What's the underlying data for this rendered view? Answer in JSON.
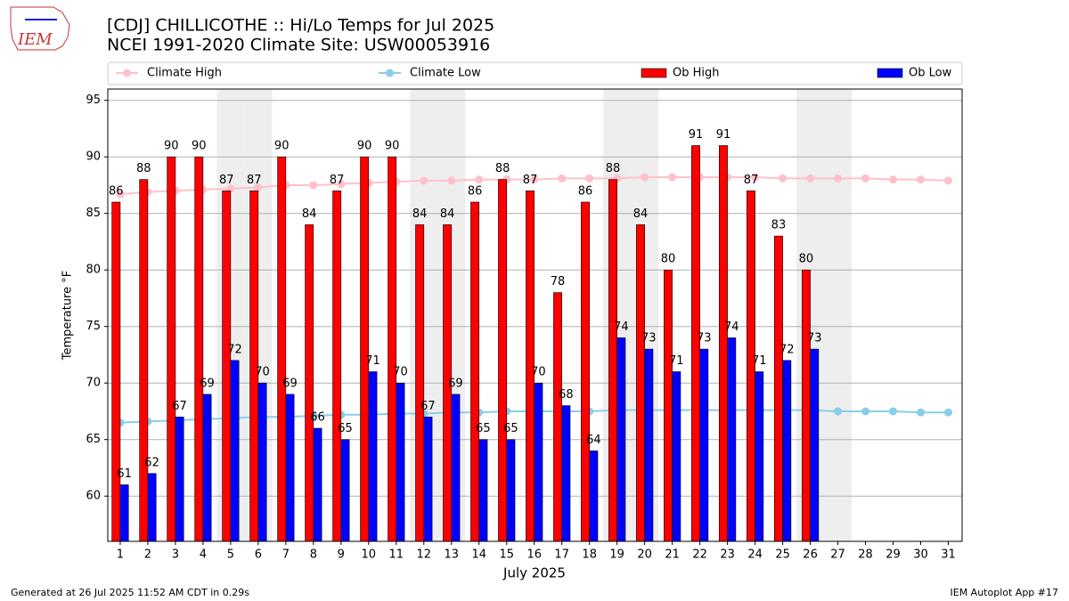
{
  "chart_data": {
    "type": "bar",
    "title": "[CDJ] CHILLICOTHE :: Hi/Lo Temps for Jul 2025",
    "subtitle": "NCEI 1991-2020 Climate Site: USW00053916",
    "logo": "IEM",
    "xlabel": "July 2025",
    "ylabel": "Temperature °F",
    "footer_left": "Generated at 26 Jul 2025 11:52 AM CDT in 0.29s",
    "footer_right": "IEM Autoplot App #17",
    "x": [
      1,
      2,
      3,
      4,
      5,
      6,
      7,
      8,
      9,
      10,
      11,
      12,
      13,
      14,
      15,
      16,
      17,
      18,
      19,
      20,
      21,
      22,
      23,
      24,
      25,
      26,
      27,
      28,
      29,
      30,
      31
    ],
    "xlim": [
      0.55,
      31.5
    ],
    "ylim": [
      56,
      96
    ],
    "yticks": [
      60,
      65,
      70,
      75,
      80,
      85,
      90,
      95
    ],
    "grid": true,
    "shaded_days": [
      5,
      6,
      12,
      13,
      19,
      20,
      26,
      27
    ],
    "series": [
      {
        "name": "Climate High",
        "type": "line",
        "color": "#ffc0cb",
        "values": [
          86.7,
          86.9,
          87.0,
          87.1,
          87.2,
          87.3,
          87.5,
          87.5,
          87.6,
          87.7,
          87.8,
          87.9,
          87.9,
          88.0,
          88.0,
          88.0,
          88.1,
          88.1,
          88.1,
          88.2,
          88.2,
          88.2,
          88.2,
          88.2,
          88.1,
          88.1,
          88.1,
          88.1,
          88.0,
          88.0,
          87.9
        ]
      },
      {
        "name": "Climate Low",
        "type": "line",
        "color": "#87ceeb",
        "values": [
          66.5,
          66.6,
          66.7,
          66.8,
          66.9,
          67.0,
          67.0,
          67.1,
          67.2,
          67.2,
          67.3,
          67.3,
          67.4,
          67.4,
          67.5,
          67.5,
          67.5,
          67.5,
          67.6,
          67.6,
          67.6,
          67.6,
          67.6,
          67.6,
          67.6,
          67.6,
          67.5,
          67.5,
          67.5,
          67.4,
          67.4
        ]
      },
      {
        "name": "Ob High",
        "type": "bar",
        "color": "#ff0000",
        "values": [
          86,
          88,
          90,
          90,
          87,
          87,
          90,
          84,
          87,
          90,
          90,
          84,
          84,
          86,
          88,
          87,
          78,
          86,
          88,
          84,
          80,
          91,
          91,
          87,
          83,
          80,
          null,
          null,
          null,
          null,
          null
        ]
      },
      {
        "name": "Ob Low",
        "type": "bar",
        "color": "#0000ff",
        "values": [
          61,
          62,
          67,
          69,
          72,
          70,
          69,
          66,
          65,
          71,
          70,
          67,
          69,
          65,
          65,
          70,
          68,
          64,
          74,
          73,
          71,
          73,
          74,
          71,
          72,
          73,
          null,
          null,
          null,
          null,
          null
        ]
      }
    ]
  }
}
